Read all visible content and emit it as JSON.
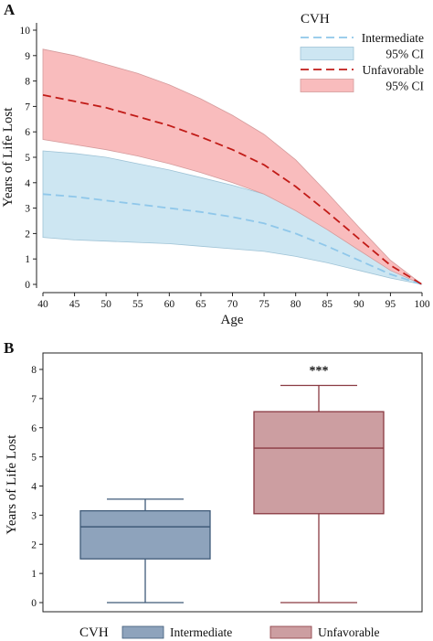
{
  "panels": {
    "A": {
      "label": "A"
    },
    "B": {
      "label": "B"
    }
  },
  "chart_data": [
    {
      "type": "line",
      "panel": "A",
      "xlabel": "Age",
      "ylabel": "Years of Life Lost",
      "xlim": [
        40,
        100
      ],
      "ylim": [
        0,
        10
      ],
      "xticks": [
        "40",
        "45",
        "50",
        "55",
        "60",
        "65",
        "70",
        "75",
        "80",
        "85",
        "90",
        "95",
        "100"
      ],
      "yticks": [
        "0",
        "1",
        "2",
        "3",
        "4",
        "5",
        "6",
        "7",
        "8",
        "9",
        "10"
      ],
      "grid": false,
      "legend_position": "top-right",
      "legend_title": "CVH",
      "x": [
        40,
        45,
        50,
        55,
        60,
        65,
        70,
        75,
        80,
        85,
        90,
        95,
        100
      ],
      "series": [
        {
          "name": "Intermediate",
          "style": "dashed",
          "color": "#8fc7ea",
          "values": [
            3.55,
            3.45,
            3.3,
            3.15,
            3.0,
            2.85,
            2.65,
            2.4,
            2.0,
            1.5,
            0.95,
            0.4,
            0.0
          ]
        },
        {
          "name": "Unfavorable",
          "style": "dashed",
          "color": "#c11b17",
          "values": [
            7.45,
            7.2,
            6.95,
            6.6,
            6.25,
            5.8,
            5.3,
            4.7,
            3.85,
            2.85,
            1.8,
            0.75,
            0.0
          ]
        }
      ],
      "bands": [
        {
          "name": "95% CI",
          "color": "#cde6f2",
          "edge": "#9fc3d6",
          "lower": [
            1.85,
            1.75,
            1.7,
            1.65,
            1.6,
            1.5,
            1.4,
            1.3,
            1.1,
            0.85,
            0.55,
            0.25,
            0.0
          ],
          "upper": [
            5.25,
            5.15,
            5.0,
            4.75,
            4.5,
            4.2,
            3.9,
            3.55,
            3.0,
            2.3,
            1.5,
            0.65,
            0.0
          ]
        },
        {
          "name": "95% CI",
          "color": "#f9bcbd",
          "edge": "#d49b9c",
          "lower": [
            5.7,
            5.5,
            5.3,
            5.05,
            4.75,
            4.4,
            4.0,
            3.55,
            2.9,
            2.15,
            1.35,
            0.55,
            0.0
          ],
          "upper": [
            9.25,
            9.0,
            8.65,
            8.3,
            7.85,
            7.3,
            6.65,
            5.9,
            4.9,
            3.6,
            2.25,
            0.95,
            0.0
          ]
        }
      ]
    },
    {
      "type": "box",
      "panel": "B",
      "xlabel": "",
      "ylabel": "Years of Life Lost",
      "ylim": [
        0,
        8
      ],
      "yticks": [
        "0",
        "1",
        "2",
        "3",
        "4",
        "5",
        "6",
        "7",
        "8"
      ],
      "grid": false,
      "legend_position": "bottom",
      "legend_title": "CVH",
      "series": [
        {
          "name": "Intermediate",
          "color": "#8ea3bc",
          "edge": "#3f5a78",
          "min": 0.0,
          "q1": 1.5,
          "median": 2.6,
          "q3": 3.15,
          "max": 3.55
        },
        {
          "name": "Unfavorable",
          "color": "#cc9ea1",
          "edge": "#8a3a42",
          "min": 0.0,
          "q1": 3.05,
          "median": 5.3,
          "q3": 6.55,
          "max": 7.45,
          "annotation": "***"
        }
      ]
    }
  ]
}
